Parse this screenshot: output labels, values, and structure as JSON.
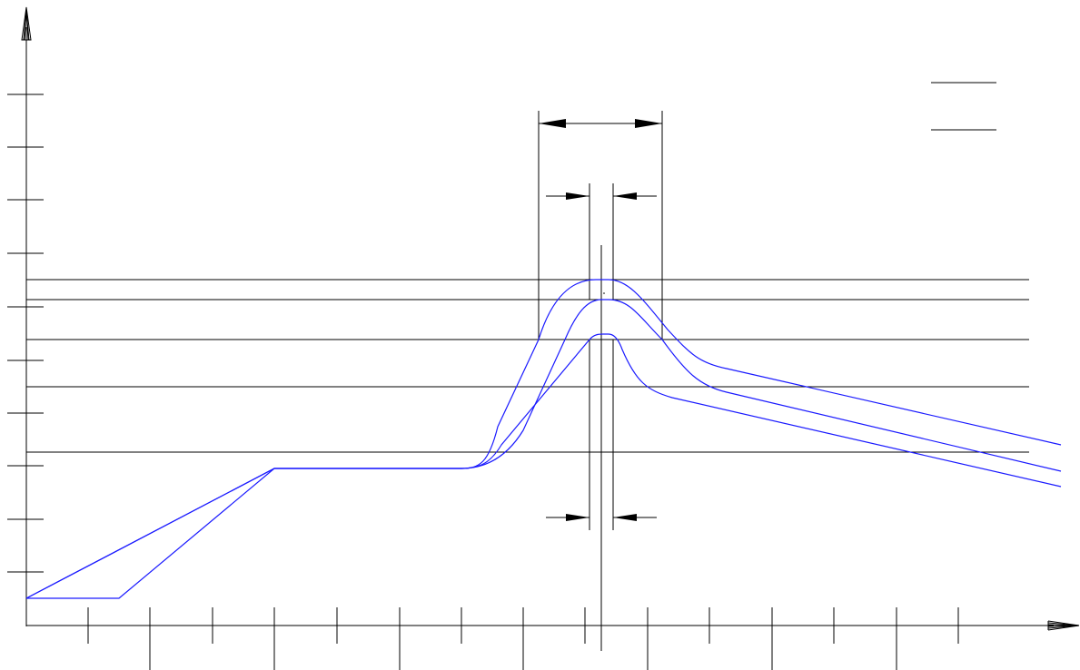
{
  "colors": {
    "background": "#ffffff",
    "line": "#000000",
    "curve": "#1a1aff",
    "faint_text": "#f4f4f4"
  },
  "icons": {
    "x_axis_arrow": "arrowhead-right",
    "y_axis_arrow": "arrowhead-up",
    "dimension_arrow": "filled-triangle-arrowhead"
  },
  "legend": {
    "entry_1": "",
    "entry_2": ""
  },
  "curves": {
    "count": 3
  },
  "reference_lines": {
    "count": 5
  }
}
